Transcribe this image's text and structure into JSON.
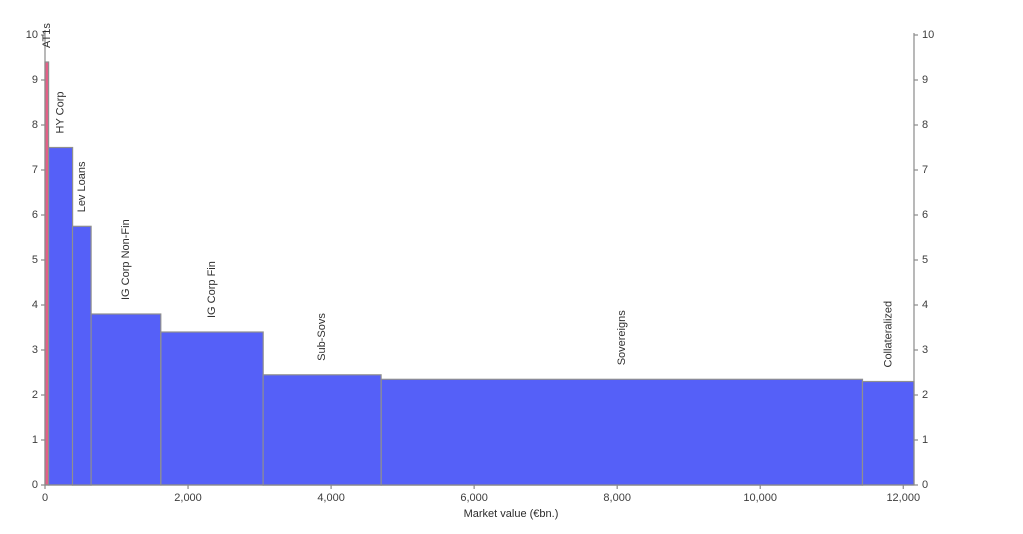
{
  "chart_data": {
    "type": "bar",
    "variant": "variable-width-bar",
    "title": "",
    "xlabel": "Market value (€bn.)",
    "ylabel": "",
    "xlim": [
      0,
      12150
    ],
    "ylim": [
      0,
      10
    ],
    "x_ticks": [
      0,
      2000,
      4000,
      6000,
      8000,
      10000,
      12000
    ],
    "x_tick_labels": [
      "0",
      "2,000",
      "4,000",
      "6,000",
      "8,000",
      "10,000",
      "12,000"
    ],
    "y_ticks": [
      0,
      1,
      2,
      3,
      4,
      5,
      6,
      7,
      8,
      9,
      10
    ],
    "y_tick_labels": [
      "0",
      "1",
      "2",
      "3",
      "4",
      "5",
      "6",
      "7",
      "8",
      "9",
      "10"
    ],
    "grid": false,
    "legend": null,
    "dual_y_axis": true,
    "segments": [
      {
        "label": "AT1s",
        "x_start": 0,
        "x_end": 50,
        "width_ebn": 50,
        "value": 9.4,
        "color": "#e35f87"
      },
      {
        "label": "HY Corp",
        "x_start": 50,
        "x_end": 385,
        "width_ebn": 335,
        "value": 7.5,
        "color": "#5560f8"
      },
      {
        "label": "Lev Loans",
        "x_start": 385,
        "x_end": 645,
        "width_ebn": 260,
        "value": 5.75,
        "color": "#5560f8"
      },
      {
        "label": "IG Corp Non-Fin",
        "x_start": 645,
        "x_end": 1620,
        "width_ebn": 975,
        "value": 3.8,
        "color": "#5560f8"
      },
      {
        "label": "IG Corp Fin",
        "x_start": 1620,
        "x_end": 3050,
        "width_ebn": 1430,
        "value": 3.4,
        "color": "#5560f8"
      },
      {
        "label": "Sub-Sovs",
        "x_start": 3050,
        "x_end": 4700,
        "width_ebn": 1650,
        "value": 2.45,
        "color": "#5560f8"
      },
      {
        "label": "Sovereigns",
        "x_start": 4700,
        "x_end": 11430,
        "width_ebn": 6730,
        "value": 2.35,
        "color": "#5560f8"
      },
      {
        "label": "Collateralized",
        "x_start": 11430,
        "x_end": 12150,
        "width_ebn": 720,
        "value": 2.3,
        "color": "#5560f8"
      }
    ],
    "style": {
      "bar_border_color": "#8f8f8f",
      "spine_color": "#8a8a8a",
      "tick_color": "#8a8a8a",
      "tick_label_color": "#3d3d3d",
      "bar_label_color": "#303030",
      "background": "#ffffff"
    }
  }
}
